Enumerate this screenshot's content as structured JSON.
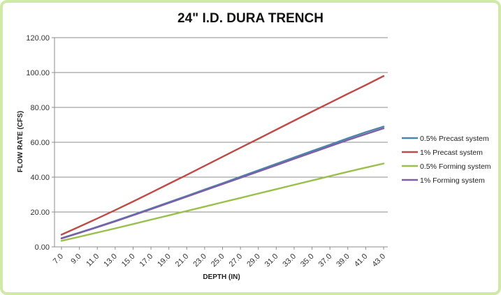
{
  "chart_data": {
    "type": "line",
    "title": "24\" I.D. DURA TRENCH",
    "xlabel": "DEPTH (IN)",
    "ylabel": "FLOW RATE (CFS)",
    "ylim": [
      0,
      120
    ],
    "y_ticks": [
      "0.00",
      "20.00",
      "40.00",
      "60.00",
      "80.00",
      "100.00",
      "120.00"
    ],
    "x_ticks": [
      "7.0",
      "9.0",
      "11.0",
      "13.0",
      "15.0",
      "17.0",
      "19.0",
      "21.0",
      "23.0",
      "25.0",
      "27.0",
      "29.0",
      "31.0",
      "33.0",
      "35.0",
      "37.0",
      "39.0",
      "41.0",
      "43.0"
    ],
    "x": [
      7,
      9,
      11,
      13,
      15,
      17,
      19,
      21,
      23,
      25,
      27,
      29,
      31,
      33,
      35,
      37,
      39,
      41,
      43
    ],
    "grid": "horizontal",
    "legend_position": "right",
    "series": [
      {
        "name": "0.5% Precast system",
        "color": "#4a86a8",
        "values": [
          5.0,
          8.2,
          11.5,
          14.9,
          18.4,
          22.0,
          25.6,
          29.2,
          32.9,
          36.5,
          40.2,
          43.9,
          47.6,
          51.3,
          55.0,
          58.6,
          62.3,
          65.8,
          69.0
        ]
      },
      {
        "name": "1% Precast system",
        "color": "#be4b48",
        "values": [
          7.0,
          11.6,
          16.3,
          21.1,
          26.0,
          31.1,
          36.2,
          41.3,
          46.5,
          51.7,
          56.9,
          62.0,
          67.2,
          72.4,
          77.6,
          82.7,
          87.8,
          92.8,
          98.0
        ]
      },
      {
        "name": "0.5% Forming system",
        "color": "#98c04a",
        "values": [
          3.5,
          5.8,
          8.2,
          10.6,
          13.1,
          15.6,
          18.1,
          20.6,
          23.1,
          25.6,
          28.1,
          30.6,
          33.1,
          35.6,
          38.1,
          40.6,
          43.1,
          45.5,
          47.8
        ]
      },
      {
        "name": "1% Forming system",
        "color": "#7d5fa8",
        "values": [
          4.8,
          8.0,
          11.3,
          14.6,
          18.1,
          21.6,
          25.2,
          28.8,
          32.4,
          36.0,
          39.6,
          43.2,
          46.8,
          50.5,
          54.1,
          57.7,
          61.3,
          64.7,
          68.0
        ]
      }
    ]
  }
}
